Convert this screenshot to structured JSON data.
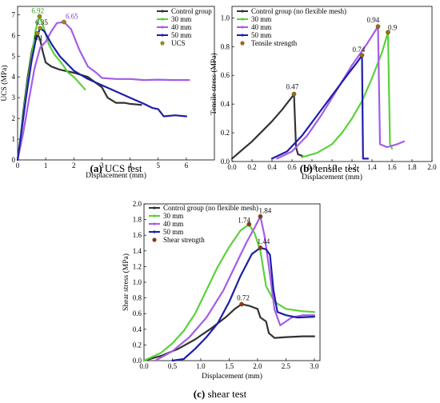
{
  "chart_data": [
    {
      "id": "a",
      "type": "line",
      "caption_letter": "(a)",
      "caption_text": " UCS test",
      "xlabel": "Displacement (mm)",
      "ylabel": "UCS (MPa)",
      "xlim": [
        0,
        7
      ],
      "ylim": [
        0,
        7.4
      ],
      "xticks": [
        0,
        1,
        2,
        3,
        4,
        5,
        6
      ],
      "yticks": [
        0,
        1,
        2,
        3,
        4,
        5,
        6,
        7
      ],
      "grid": false,
      "legend_position": "top-right",
      "series": [
        {
          "name": "Control group",
          "color": "#333333",
          "points": [
            [
              0,
              0
            ],
            [
              0.1,
              1
            ],
            [
              0.2,
              2.3
            ],
            [
              0.35,
              3.9
            ],
            [
              0.5,
              5.2
            ],
            [
              0.62,
              5.9
            ],
            [
              0.7,
              6.1
            ],
            [
              0.8,
              5.8
            ],
            [
              0.9,
              5.2
            ],
            [
              1.0,
              4.7
            ],
            [
              1.2,
              4.5
            ],
            [
              1.5,
              4.35
            ],
            [
              2.0,
              4.2
            ],
            [
              2.5,
              4.0
            ],
            [
              3.0,
              3.5
            ],
            [
              3.2,
              3.0
            ],
            [
              3.5,
              2.75
            ],
            [
              3.8,
              2.75
            ],
            [
              4.0,
              2.7
            ],
            [
              4.4,
              2.65
            ]
          ]
        },
        {
          "name": "30 mm",
          "color": "#5bd13a",
          "points": [
            [
              0,
              0
            ],
            [
              0.15,
              1.6
            ],
            [
              0.3,
              3.2
            ],
            [
              0.5,
              5.0
            ],
            [
              0.65,
              6.3
            ],
            [
              0.78,
              6.92
            ],
            [
              0.9,
              6.5
            ],
            [
              1.1,
              5.6
            ],
            [
              1.3,
              5.1
            ],
            [
              1.6,
              4.6
            ],
            [
              1.8,
              4.2
            ],
            [
              2.0,
              4.0
            ],
            [
              2.2,
              3.7
            ],
            [
              2.4,
              3.4
            ]
          ]
        },
        {
          "name": "40 mm",
          "color": "#a55ce8",
          "points": [
            [
              0,
              0
            ],
            [
              0.2,
              1.3
            ],
            [
              0.4,
              2.9
            ],
            [
              0.6,
              4.4
            ],
            [
              0.8,
              5.4
            ],
            [
              1.0,
              5.7
            ],
            [
              1.2,
              6.2
            ],
            [
              1.4,
              6.6
            ],
            [
              1.65,
              6.65
            ],
            [
              1.9,
              6.3
            ],
            [
              2.2,
              5.3
            ],
            [
              2.5,
              4.5
            ],
            [
              2.8,
              4.2
            ],
            [
              3.0,
              3.95
            ],
            [
              3.5,
              3.9
            ],
            [
              4.0,
              3.9
            ],
            [
              4.5,
              3.85
            ],
            [
              5.0,
              3.87
            ],
            [
              5.5,
              3.85
            ],
            [
              6.1,
              3.85
            ]
          ]
        },
        {
          "name": "50 mm",
          "color": "#1d1ea8",
          "points": [
            [
              0,
              0
            ],
            [
              0.15,
              1.5
            ],
            [
              0.3,
              3.0
            ],
            [
              0.5,
              4.8
            ],
            [
              0.65,
              5.8
            ],
            [
              0.8,
              6.35
            ],
            [
              0.95,
              6.2
            ],
            [
              1.2,
              5.6
            ],
            [
              1.5,
              5.0
            ],
            [
              2.0,
              4.3
            ],
            [
              2.5,
              3.9
            ],
            [
              3.0,
              3.6
            ],
            [
              3.5,
              3.3
            ],
            [
              4.0,
              3.0
            ],
            [
              4.5,
              2.7
            ],
            [
              4.8,
              2.5
            ],
            [
              5.0,
              2.45
            ],
            [
              5.2,
              2.1
            ],
            [
              5.6,
              2.15
            ],
            [
              6.0,
              2.1
            ]
          ]
        }
      ],
      "markers": {
        "name": "UCS",
        "color": "#9a8a1e",
        "points": [
          [
            0.7,
            6.1
          ],
          [
            0.78,
            6.92
          ],
          [
            1.65,
            6.65
          ],
          [
            0.8,
            6.35
          ]
        ]
      },
      "peak_labels": [
        {
          "text": "6.92",
          "x": 0.78,
          "y": 6.92,
          "color": "#2c9a1a"
        },
        {
          "text": "6.65",
          "x": 1.65,
          "y": 6.65,
          "color": "#8a3fd0"
        },
        {
          "text": "6.35",
          "x": 0.8,
          "y": 6.35,
          "color": "#111111"
        },
        {
          "text": "6.1",
          "x": 0.7,
          "y": 6.1,
          "color": "#111111"
        }
      ]
    },
    {
      "id": "b",
      "type": "line",
      "caption_letter": "(b)",
      "caption_text": " tensile test",
      "xlabel": "Displacement (mm)",
      "ylabel": "Tensile stress (MPa)",
      "xlim": [
        0,
        2.0
      ],
      "ylim": [
        0,
        1.08
      ],
      "xticks": [
        0,
        0.2,
        0.4,
        0.6,
        0.8,
        1.0,
        1.2,
        1.4,
        1.6,
        1.8,
        2.0
      ],
      "xtick_labels": [
        "0.0",
        "0.2",
        "0.4",
        "0.6",
        "0.8",
        "1.0",
        "1.2",
        "1.4",
        "1.6",
        "1.8",
        "2.0"
      ],
      "yticks": [
        0,
        0.2,
        0.4,
        0.6,
        0.8,
        1.0
      ],
      "ytick_labels": [
        "0.0",
        "0.2",
        "0.4",
        "0.6",
        "0.8",
        "1.0"
      ],
      "grid": false,
      "legend_position": "top-left",
      "series": [
        {
          "name": "Control group (no flexible mesh)",
          "color": "#333333",
          "points": [
            [
              0,
              0.02
            ],
            [
              0.1,
              0.08
            ],
            [
              0.2,
              0.14
            ],
            [
              0.3,
              0.21
            ],
            [
              0.4,
              0.28
            ],
            [
              0.5,
              0.36
            ],
            [
              0.6,
              0.45
            ],
            [
              0.62,
              0.47
            ],
            [
              0.64,
              0.1
            ],
            [
              0.66,
              0.05
            ],
            [
              0.7,
              0.04
            ]
          ]
        },
        {
          "name": "30 mm",
          "color": "#5bd13a",
          "points": [
            [
              0.7,
              0.03
            ],
            [
              0.85,
              0.06
            ],
            [
              1.0,
              0.12
            ],
            [
              1.1,
              0.2
            ],
            [
              1.2,
              0.3
            ],
            [
              1.3,
              0.42
            ],
            [
              1.4,
              0.58
            ],
            [
              1.5,
              0.76
            ],
            [
              1.56,
              0.9
            ],
            [
              1.58,
              0.12
            ],
            [
              1.6,
              0.09
            ]
          ]
        },
        {
          "name": "40 mm",
          "color": "#a55ce8",
          "points": [
            [
              0.45,
              0.02
            ],
            [
              0.6,
              0.07
            ],
            [
              0.75,
              0.18
            ],
            [
              0.9,
              0.33
            ],
            [
              1.05,
              0.5
            ],
            [
              1.2,
              0.67
            ],
            [
              1.35,
              0.82
            ],
            [
              1.46,
              0.94
            ],
            [
              1.48,
              0.12
            ],
            [
              1.55,
              0.1
            ],
            [
              1.65,
              0.12
            ],
            [
              1.72,
              0.14
            ]
          ]
        },
        {
          "name": "50 mm",
          "color": "#1d1ea8",
          "points": [
            [
              0.4,
              0.02
            ],
            [
              0.55,
              0.07
            ],
            [
              0.7,
              0.18
            ],
            [
              0.85,
              0.32
            ],
            [
              1.0,
              0.46
            ],
            [
              1.15,
              0.6
            ],
            [
              1.25,
              0.69
            ],
            [
              1.3,
              0.74
            ],
            [
              1.31,
              0.02
            ],
            [
              1.36,
              0.02
            ]
          ]
        }
      ],
      "markers": {
        "name": "Tensile strength",
        "color": "#9a6a1e",
        "points": [
          [
            0.62,
            0.47
          ],
          [
            1.3,
            0.74
          ],
          [
            1.46,
            0.94
          ],
          [
            1.56,
            0.9
          ]
        ]
      },
      "peak_labels": [
        {
          "text": "0.47",
          "x": 0.62,
          "y": 0.47,
          "color": "#111111"
        },
        {
          "text": "0.74",
          "x": 1.3,
          "y": 0.74,
          "color": "#111111"
        },
        {
          "text": "0.94",
          "x": 1.46,
          "y": 0.94,
          "color": "#111111"
        },
        {
          "text": "0.9",
          "x": 1.56,
          "y": 0.9,
          "color": "#111111"
        }
      ]
    },
    {
      "id": "c",
      "type": "line",
      "caption_letter": "(c)",
      "caption_text": " shear test",
      "xlabel": "Displacement (mm)",
      "ylabel": "Shear stress (MPa)",
      "xlim": [
        0,
        3.1
      ],
      "ylim": [
        0,
        2.0
      ],
      "xticks": [
        0,
        0.5,
        1.0,
        1.5,
        2.0,
        2.5,
        3.0
      ],
      "xtick_labels": [
        "0.0",
        "0.5",
        "1.0",
        "1.5",
        "2.0",
        "2.5",
        "3.0"
      ],
      "yticks": [
        0,
        0.2,
        0.4,
        0.6,
        0.8,
        1.0,
        1.2,
        1.4,
        1.6,
        1.8,
        2.0
      ],
      "ytick_labels": [
        "0.0",
        "0.2",
        "0.4",
        "0.6",
        "0.8",
        "1.0",
        "1.2",
        "1.4",
        "1.6",
        "1.8",
        "2.0"
      ],
      "grid": false,
      "legend_position": "top-left",
      "series": [
        {
          "name": "Control group (no flexible mesh)",
          "color": "#333333",
          "points": [
            [
              0,
              0
            ],
            [
              0.3,
              0.06
            ],
            [
              0.6,
              0.15
            ],
            [
              0.9,
              0.27
            ],
            [
              1.2,
              0.42
            ],
            [
              1.45,
              0.56
            ],
            [
              1.6,
              0.66
            ],
            [
              1.72,
              0.72
            ],
            [
              1.85,
              0.7
            ],
            [
              2.0,
              0.66
            ],
            [
              2.05,
              0.55
            ],
            [
              2.15,
              0.5
            ],
            [
              2.2,
              0.35
            ],
            [
              2.3,
              0.29
            ],
            [
              2.5,
              0.3
            ],
            [
              2.8,
              0.31
            ],
            [
              3.0,
              0.31
            ]
          ]
        },
        {
          "name": "30 mm",
          "color": "#5bd13a",
          "points": [
            [
              0,
              0
            ],
            [
              0.3,
              0.1
            ],
            [
              0.5,
              0.22
            ],
            [
              0.7,
              0.38
            ],
            [
              0.9,
              0.6
            ],
            [
              1.1,
              0.9
            ],
            [
              1.3,
              1.2
            ],
            [
              1.5,
              1.45
            ],
            [
              1.7,
              1.66
            ],
            [
              1.85,
              1.74
            ],
            [
              1.95,
              1.62
            ],
            [
              2.05,
              1.4
            ],
            [
              2.15,
              0.95
            ],
            [
              2.3,
              0.75
            ],
            [
              2.5,
              0.66
            ],
            [
              2.8,
              0.63
            ],
            [
              3.0,
              0.62
            ]
          ]
        },
        {
          "name": "40 mm",
          "color": "#a55ce8",
          "points": [
            [
              0.2,
              0
            ],
            [
              0.5,
              0.12
            ],
            [
              0.8,
              0.3
            ],
            [
              1.1,
              0.55
            ],
            [
              1.4,
              0.9
            ],
            [
              1.6,
              1.2
            ],
            [
              1.8,
              1.5
            ],
            [
              1.95,
              1.7
            ],
            [
              2.05,
              1.84
            ],
            [
              2.12,
              1.6
            ],
            [
              2.2,
              1.2
            ],
            [
              2.3,
              0.65
            ],
            [
              2.4,
              0.45
            ],
            [
              2.6,
              0.55
            ],
            [
              2.8,
              0.58
            ],
            [
              3.0,
              0.58
            ]
          ]
        },
        {
          "name": "50 mm",
          "color": "#1d1ea8",
          "points": [
            [
              0.5,
              0
            ],
            [
              0.7,
              0.02
            ],
            [
              0.9,
              0.15
            ],
            [
              1.1,
              0.3
            ],
            [
              1.3,
              0.48
            ],
            [
              1.5,
              0.75
            ],
            [
              1.7,
              1.08
            ],
            [
              1.9,
              1.36
            ],
            [
              2.05,
              1.44
            ],
            [
              2.15,
              1.42
            ],
            [
              2.22,
              1.35
            ],
            [
              2.28,
              0.9
            ],
            [
              2.35,
              0.62
            ],
            [
              2.5,
              0.58
            ],
            [
              2.7,
              0.55
            ],
            [
              3.0,
              0.56
            ]
          ]
        }
      ],
      "markers": {
        "name": "Shear strength",
        "color": "#8c3a14",
        "points": [
          [
            1.72,
            0.72
          ],
          [
            1.85,
            1.74
          ],
          [
            2.05,
            1.84
          ],
          [
            2.05,
            1.44
          ]
        ]
      },
      "peak_labels": [
        {
          "text": "0.72",
          "x": 1.72,
          "y": 0.72,
          "color": "#111111"
        },
        {
          "text": "1.74",
          "x": 1.85,
          "y": 1.74,
          "color": "#111111"
        },
        {
          "text": "1.84",
          "x": 2.05,
          "y": 1.84,
          "color": "#111111"
        },
        {
          "text": "1.44",
          "x": 2.05,
          "y": 1.44,
          "color": "#111111"
        }
      ]
    }
  ]
}
